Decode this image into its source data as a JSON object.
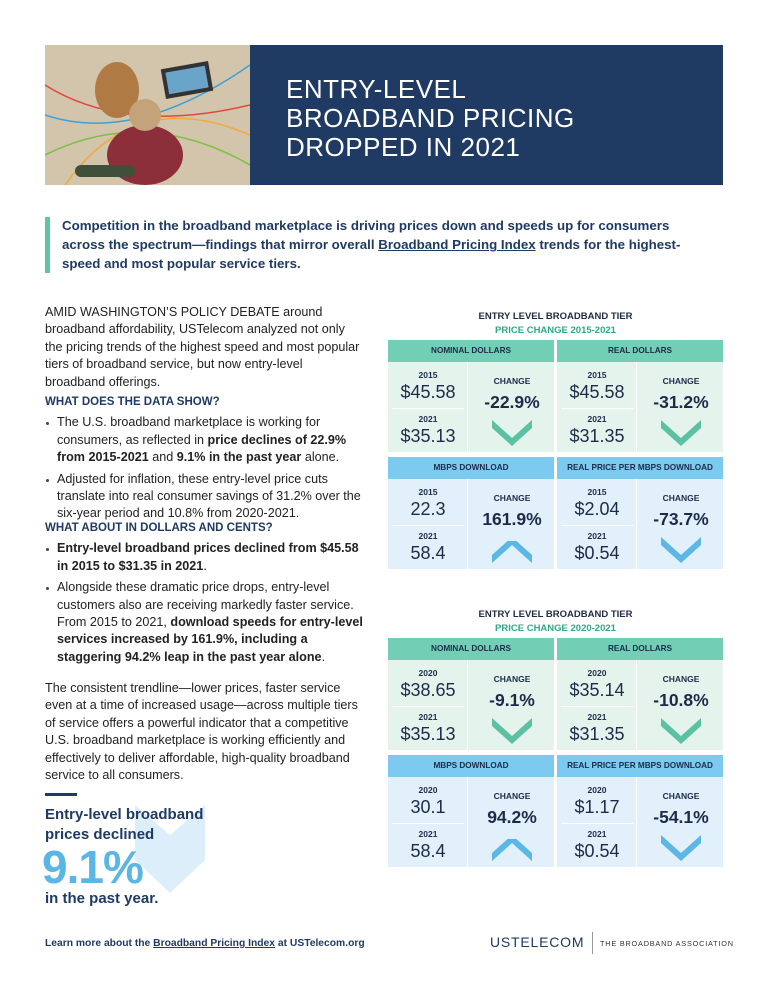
{
  "header": {
    "title_lines": [
      "ENTRY-LEVEL",
      "BROADBAND PRICING",
      "DROPPED IN 2021"
    ]
  },
  "intro": [
    {
      "text": "Competition in the broadband marketplace is driving prices down and speeds up for consumers across the spectrum—findings that mirror overall ",
      "link": false
    },
    {
      "text": "Broadband Pricing Index",
      "link": true
    },
    {
      "text": " trends for the highest-speed and most popular service tiers.",
      "link": false
    }
  ],
  "body": {
    "lead": [
      {
        "text": "AMID WASHINGTON’S POLICY DEBATE around broadband affordability, USTelecom analyzed not only the pricing trends of the highest speed and most popular tiers of broadband service, but now entry-level broadband offerings.",
        "bold": false
      }
    ],
    "sections": [
      {
        "heading": "WHAT DOES THE DATA SHOW?",
        "bullets": [
          [
            {
              "text": "The U.S. broadband marketplace is working for consumers, as reflected in ",
              "bold": false
            },
            {
              "text": "price declines of 22.9% from 2015-2021",
              "bold": true
            },
            {
              "text": " and ",
              "bold": false
            },
            {
              "text": "9.1% in the past year",
              "bold": true
            },
            {
              "text": " alone.",
              "bold": false
            }
          ],
          [
            {
              "text": "Adjusted for inflation, these entry-level price cuts translate into real consumer savings of 31.2% over the six-year period and 10.8% from 2020-2021.",
              "bold": false
            }
          ]
        ]
      },
      {
        "heading": "WHAT ABOUT IN DOLLARS AND CENTS?",
        "bullets": [
          [
            {
              "text": "Entry-level broadband prices declined from $45.58 in 2015 to $31.35 in 2021",
              "bold": true
            },
            {
              "text": ".",
              "bold": false
            }
          ],
          [
            {
              "text": "Alongside these dramatic price drops, entry-level customers also are receiving markedly faster service. From 2015 to 2021, ",
              "bold": false
            },
            {
              "text": "download speeds for entry-level services increased by 161.9%, including a staggering 94.2% leap in the past year alone",
              "bold": true
            },
            {
              "text": ".",
              "bold": false
            }
          ]
        ]
      }
    ],
    "closing": [
      {
        "text": "The consistent trendline—lower prices, faster service even at a time of increased usage—across multiple tiers of service offers a powerful indicator that a competitive U.S. broadband marketplace is working efficiently and effectively to deliver affordable, high-quality broadband service to all consumers.",
        "bold": false
      }
    ]
  },
  "panels": [
    {
      "title": "ENTRY LEVEL BROADBAND TIER",
      "subtitle": "PRICE CHANGE 2015-2021",
      "tiles": [
        {
          "header": "NOMINAL DOLLARS",
          "theme": "green",
          "year_a": "2015",
          "value_a": "$45.58",
          "year_b": "2021",
          "value_b": "$35.13",
          "change_label": "CHANGE",
          "change": "-22.9%",
          "direction": "down"
        },
        {
          "header": "REAL DOLLARS",
          "theme": "green",
          "year_a": "2015",
          "value_a": "$45.58",
          "year_b": "2021",
          "value_b": "$31.35",
          "change_label": "CHANGE",
          "change": "-31.2%",
          "direction": "down"
        },
        {
          "header": "MBPS DOWNLOAD",
          "theme": "blue",
          "year_a": "2015",
          "value_a": "22.3",
          "year_b": "2021",
          "value_b": "58.4",
          "change_label": "CHANGE",
          "change": "161.9%",
          "direction": "up"
        },
        {
          "header": "REAL PRICE PER MBPS DOWNLOAD",
          "theme": "blue",
          "year_a": "2015",
          "value_a": "$2.04",
          "year_b": "2021",
          "value_b": "$0.54",
          "change_label": "CHANGE",
          "change": "-73.7%",
          "direction": "down"
        }
      ]
    },
    {
      "title": "ENTRY LEVEL BROADBAND TIER",
      "subtitle": "PRICE CHANGE 2020-2021",
      "tiles": [
        {
          "header": "NOMINAL DOLLARS",
          "theme": "green",
          "year_a": "2020",
          "value_a": "$38.65",
          "year_b": "2021",
          "value_b": "$35.13",
          "change_label": "CHANGE",
          "change": "-9.1%",
          "direction": "down"
        },
        {
          "header": "REAL DOLLARS",
          "theme": "green",
          "year_a": "2020",
          "value_a": "$35.14",
          "year_b": "2021",
          "value_b": "$31.35",
          "change_label": "CHANGE",
          "change": "-10.8%",
          "direction": "down"
        },
        {
          "header": "MBPS DOWNLOAD",
          "theme": "blue",
          "year_a": "2020",
          "value_a": "30.1",
          "year_b": "2021",
          "value_b": "58.4",
          "change_label": "CHANGE",
          "change": "94.2%",
          "direction": "up"
        },
        {
          "header": "REAL PRICE PER MBPS DOWNLOAD",
          "theme": "blue",
          "year_a": "2020",
          "value_a": "$1.17",
          "year_b": "2021",
          "value_b": "$0.54",
          "change_label": "CHANGE",
          "change": "-54.1%",
          "direction": "down"
        }
      ]
    }
  ],
  "callout": {
    "top": "Entry-level broadband prices declined",
    "figure": "9.1%",
    "bottom": "in the past year."
  },
  "footer": [
    {
      "text": "Learn more about the ",
      "link": false
    },
    {
      "text": "Broadband Pricing Index",
      "link": true
    },
    {
      "text": " at USTelecom.org",
      "link": false
    }
  ],
  "logo": {
    "name": "USTELECOM",
    "tagline": "THE BROADBAND ASSOCIATION"
  }
}
